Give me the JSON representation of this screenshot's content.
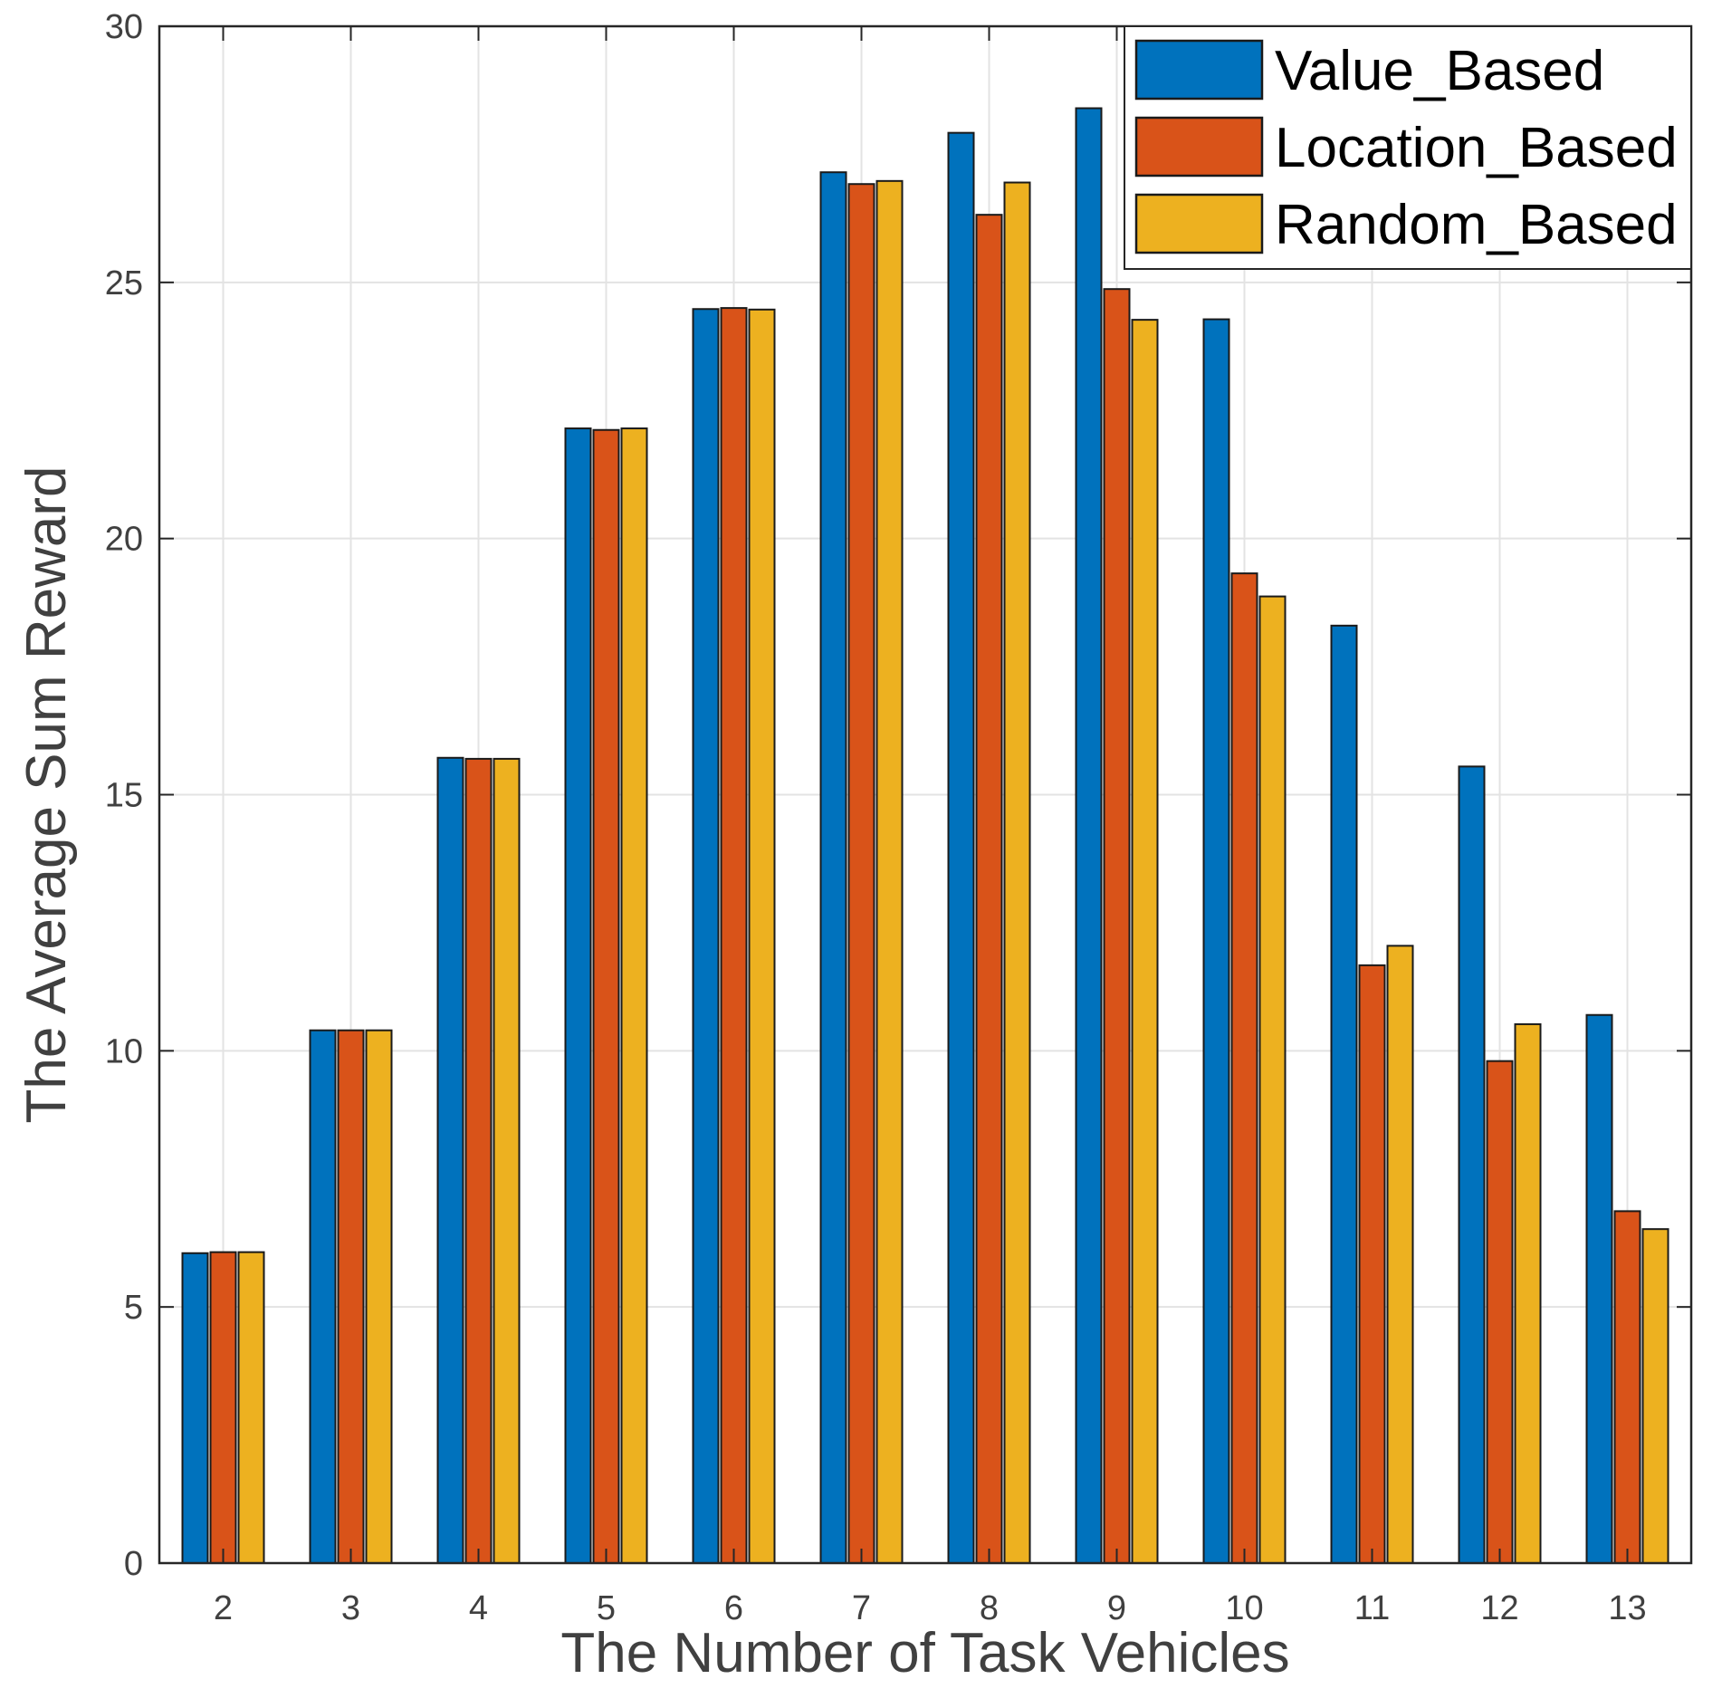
{
  "chart_data": {
    "type": "bar",
    "title": "",
    "xlabel": "The Number of Task Vehicles",
    "ylabel": "The Average Sum Reward",
    "categories": [
      "2",
      "3",
      "4",
      "5",
      "6",
      "7",
      "8",
      "9",
      "10",
      "11",
      "12",
      "13"
    ],
    "ylim": [
      0,
      30
    ],
    "yticks": [
      0,
      5,
      10,
      15,
      20,
      25,
      30
    ],
    "grid": true,
    "legend_position": "top-right",
    "series": [
      {
        "name": "Value_Based",
        "color": "#0072BD",
        "values": [
          6.05,
          10.4,
          15.72,
          22.15,
          24.48,
          27.15,
          27.92,
          28.4,
          24.28,
          18.3,
          15.55,
          10.7
        ]
      },
      {
        "name": "Location_Based",
        "color": "#D95319",
        "values": [
          6.07,
          10.4,
          15.7,
          22.12,
          24.5,
          26.92,
          26.32,
          24.87,
          19.32,
          11.67,
          9.8,
          6.87
        ]
      },
      {
        "name": "Random_Based",
        "color": "#EDB120",
        "values": [
          6.07,
          10.4,
          15.7,
          22.15,
          24.47,
          26.98,
          26.95,
          24.27,
          18.87,
          12.05,
          10.52,
          6.52
        ]
      }
    ]
  }
}
